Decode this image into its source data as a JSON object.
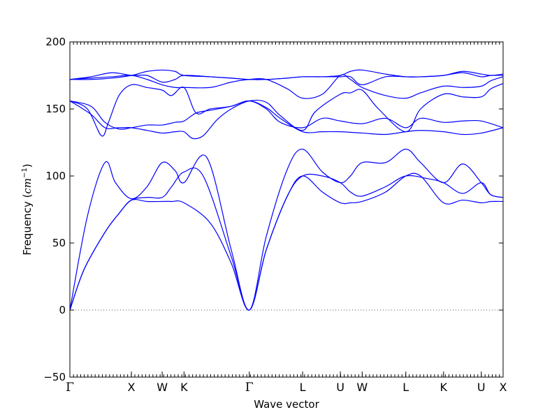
{
  "chart_data": {
    "type": "line",
    "title": "",
    "xlabel": "Wave vector",
    "ylabel": "Frequency (cm⁻¹)",
    "ylabel_parts": {
      "text": "Frequency (",
      "unit": "cm",
      "sup": "−1",
      "close": ")"
    },
    "ylim": [
      -50,
      200
    ],
    "yticks": [
      -50,
      0,
      50,
      100,
      150,
      200
    ],
    "ytick_labels": [
      "−50",
      "0",
      "50",
      "100",
      "150",
      "200"
    ],
    "zero_line": {
      "y": 0,
      "style": "dotted"
    },
    "kpath_labels": [
      "Γ",
      "X",
      "W",
      "K",
      "Γ",
      "L",
      "U",
      "W",
      "L",
      "K",
      "U",
      "X"
    ],
    "kpath_positions": [
      0.0,
      0.877,
      1.316,
      1.627,
      2.558,
      3.318,
      3.856,
      4.167,
      4.789,
      5.327,
      5.865,
      6.176
    ],
    "xlim": [
      0.0,
      6.176
    ],
    "line_color": "#0000ff",
    "series": [
      {
        "x": [
          0.0,
          0.2,
          0.5,
          0.7,
          0.877,
          1.1,
          1.316,
          1.45,
          1.627,
          2.0,
          2.3,
          2.558,
          2.8,
          3.1,
          3.318,
          3.6,
          3.856,
          4.0,
          4.167,
          4.5,
          4.789,
          5.0,
          5.327,
          5.6,
          5.865,
          6.0,
          6.176
        ],
        "y": [
          0,
          30,
          58,
          72,
          82,
          81,
          81,
          81,
          80,
          65,
          35,
          0,
          45,
          85,
          100,
          88,
          80,
          80,
          81,
          88,
          100,
          100,
          80,
          82,
          80,
          81,
          81
        ]
      },
      {
        "x": [
          0.0,
          0.2,
          0.5,
          0.7,
          0.877,
          1.1,
          1.316,
          1.45,
          1.627,
          1.9,
          2.3,
          2.558,
          2.8,
          3.1,
          3.318,
          3.6,
          3.856,
          4.0,
          4.167,
          4.5,
          4.789,
          5.1,
          5.327,
          5.6,
          5.865,
          6.0,
          6.176
        ],
        "y": [
          0,
          30,
          58,
          72,
          82,
          84,
          84,
          92,
          103,
          100,
          40,
          0,
          45,
          85,
          100,
          100,
          95,
          88,
          85,
          92,
          100,
          98,
          95,
          87,
          95,
          86,
          84
        ]
      },
      {
        "x": [
          0.0,
          0.25,
          0.5,
          0.65,
          0.877,
          1.1,
          1.316,
          1.5,
          1.627,
          1.95,
          2.3,
          2.558,
          2.8,
          3.1,
          3.318,
          3.6,
          3.856,
          4.0,
          4.167,
          4.5,
          4.789,
          5.0,
          5.327,
          5.6,
          5.865,
          6.0,
          6.176
        ],
        "y": [
          0,
          70,
          110,
          95,
          83,
          92,
          110,
          104,
          95,
          114,
          45,
          0,
          55,
          105,
          120,
          103,
          95,
          100,
          110,
          110,
          120,
          110,
          95,
          109,
          95,
          86,
          84
        ]
      },
      {
        "x": [
          0.0,
          0.3,
          0.5,
          0.7,
          0.877,
          1.1,
          1.316,
          1.5,
          1.627,
          1.8,
          2.0,
          2.3,
          2.558,
          2.8,
          3.0,
          3.318,
          3.6,
          3.856,
          4.167,
          4.5,
          4.789,
          5.0,
          5.327,
          5.6,
          5.865,
          6.176
        ],
        "y": [
          156,
          152,
          140,
          135,
          136,
          138,
          138,
          140,
          141,
          147,
          149,
          152,
          156,
          151,
          143,
          133,
          133,
          133,
          132,
          131,
          133,
          134,
          133,
          131,
          132,
          136
        ]
      },
      {
        "x": [
          0.0,
          0.25,
          0.45,
          0.55,
          0.7,
          0.877,
          1.1,
          1.316,
          1.45,
          1.627,
          1.8,
          2.0,
          2.3,
          2.558,
          2.8,
          3.0,
          3.318,
          3.6,
          3.856,
          4.167,
          4.5,
          4.789,
          5.0,
          5.327,
          5.6,
          5.865,
          6.176
        ],
        "y": [
          156,
          150,
          130,
          140,
          160,
          168,
          166,
          164,
          160,
          166,
          147,
          150,
          152,
          156,
          150,
          140,
          136,
          143,
          141,
          139,
          143,
          136,
          143,
          140,
          141,
          141,
          136
        ]
      },
      {
        "x": [
          0.0,
          0.3,
          0.5,
          0.7,
          0.877,
          1.1,
          1.316,
          1.5,
          1.627,
          1.75,
          1.9,
          2.1,
          2.3,
          2.558,
          2.8,
          3.0,
          3.318,
          3.5,
          3.856,
          4.0,
          4.167,
          4.4,
          4.789,
          5.0,
          5.327,
          5.6,
          5.865,
          6.0,
          6.176
        ],
        "y": [
          156,
          146,
          136,
          136,
          136,
          134,
          132,
          133,
          133,
          128,
          130,
          142,
          150,
          156,
          155,
          145,
          134,
          148,
          161,
          162,
          164,
          150,
          133,
          150,
          161,
          159,
          159,
          165,
          169
        ]
      },
      {
        "x": [
          0.0,
          0.3,
          0.6,
          0.877,
          1.1,
          1.316,
          1.5,
          1.627,
          2.0,
          2.3,
          2.558,
          2.8,
          3.1,
          3.318,
          3.6,
          3.856,
          4.0,
          4.167,
          4.5,
          4.789,
          5.0,
          5.327,
          5.6,
          5.865,
          6.0,
          6.176
        ],
        "y": [
          172,
          173,
          174,
          175,
          172,
          168,
          166,
          166,
          166,
          170,
          172,
          172,
          165,
          158,
          161,
          175,
          172,
          166,
          160,
          158,
          162,
          167,
          166,
          167,
          171,
          174
        ]
      },
      {
        "x": [
          0.0,
          0.3,
          0.6,
          0.877,
          1.1,
          1.316,
          1.5,
          1.627,
          2.0,
          2.3,
          2.558,
          2.8,
          3.1,
          3.318,
          3.6,
          3.856,
          4.0,
          4.167,
          4.5,
          4.789,
          5.0,
          5.327,
          5.6,
          5.865,
          6.0,
          6.176
        ],
        "y": [
          172,
          174,
          177,
          175,
          175,
          170,
          172,
          175,
          174,
          173,
          172,
          172,
          173,
          174,
          174,
          174,
          174,
          168,
          174,
          174,
          174,
          175,
          177,
          174,
          175,
          175
        ]
      },
      {
        "x": [
          0.0,
          0.3,
          0.6,
          0.877,
          1.1,
          1.316,
          1.5,
          1.627,
          2.0,
          2.3,
          2.558,
          2.8,
          3.1,
          3.318,
          3.6,
          3.856,
          4.0,
          4.167,
          4.5,
          4.789,
          5.0,
          5.327,
          5.6,
          5.865,
          6.0,
          6.176
        ],
        "y": [
          172,
          172,
          173,
          175,
          178,
          179,
          178,
          175,
          174,
          173,
          172,
          172,
          173,
          174,
          174,
          175,
          178,
          179,
          176,
          174,
          174,
          175,
          178,
          176,
          175,
          176
        ]
      }
    ]
  }
}
